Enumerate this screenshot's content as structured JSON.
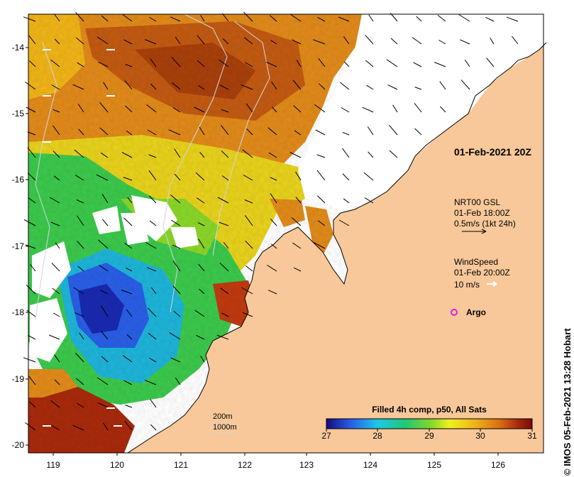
{
  "map": {
    "datestamp": "01-Feb-2021 20Z",
    "credit": "© IMOS 05-Feb-2021 13:28 Hobart",
    "lat_ticks": [
      "-14",
      "-15",
      "-16",
      "-17",
      "-18",
      "-19",
      "-20"
    ],
    "lon_ticks": [
      "119",
      "120",
      "121",
      "122",
      "123",
      "124",
      "125",
      "126"
    ],
    "current_legend": {
      "line1": "NRT00 GSL",
      "line2": "01-Feb 18:00Z",
      "line3": "0.5m/s (1kt 24h)"
    },
    "wind_legend": {
      "line1": "WindSpeed",
      "line2": "01-Feb 20:00Z",
      "line3": "10 m/s"
    },
    "argo_label": "Argo",
    "depth_labels": [
      "200m",
      "1000m"
    ],
    "colorbar": {
      "title": "Filled 4h comp, p50, All Sats",
      "ticks": [
        "27",
        "28",
        "29",
        "30",
        "31"
      ],
      "range": [
        27,
        31
      ],
      "colors": [
        "#1a0c8c",
        "#2a5ee6",
        "#22c8e8",
        "#22c878",
        "#7ad62a",
        "#f0f020",
        "#f0b418",
        "#d87014",
        "#a82a0c",
        "#8a0c0c"
      ]
    },
    "colors": {
      "land": "#f8c89a",
      "ocean_missing": "#ffffff",
      "argo": "#e020e0"
    }
  }
}
